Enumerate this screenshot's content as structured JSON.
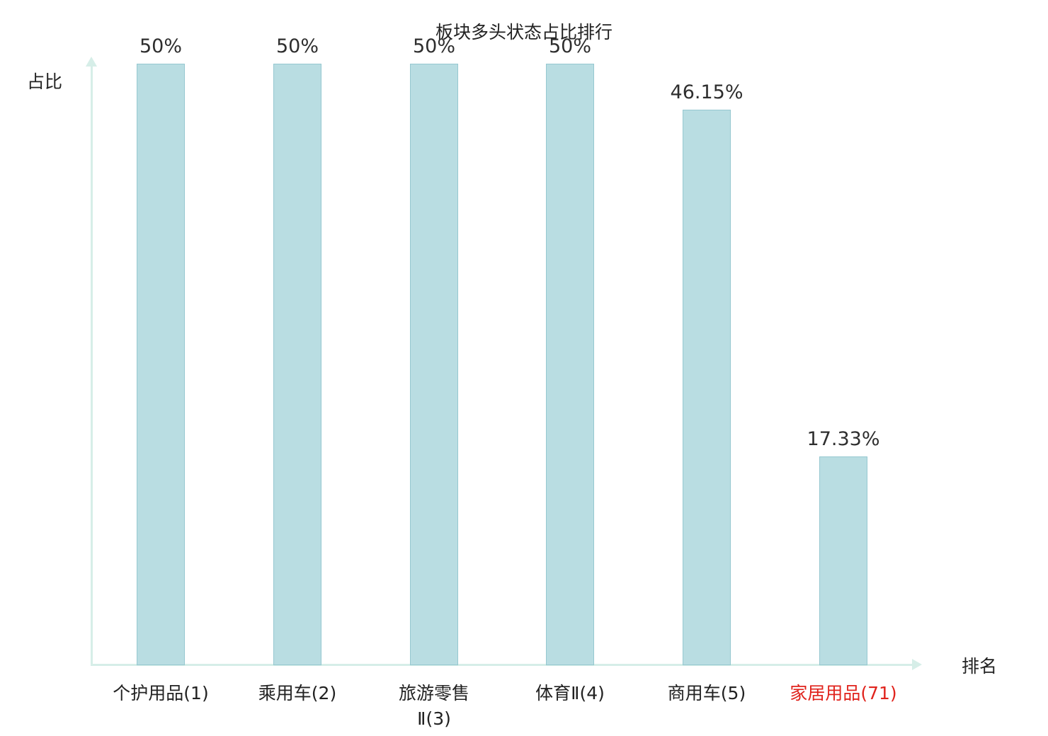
{
  "chart_data": {
    "type": "bar",
    "title": "板块多头状态占比排行",
    "xlabel": "排名",
    "ylabel": "占比",
    "categories": [
      "个护用品(1)",
      "乘用车(2)",
      "旅游零售\nⅡ(3)",
      "体育Ⅱ(4)",
      "商用车(5)",
      "家居用品(71)"
    ],
    "values": [
      50,
      50,
      50,
      50,
      46.15,
      17.33
    ],
    "value_labels": [
      "50%",
      "50%",
      "50%",
      "50%",
      "46.15%",
      "17.33%"
    ],
    "highlight_index": 5,
    "ylim": [
      0,
      50
    ],
    "grid": false,
    "legend": "none",
    "colors": {
      "bar_fill": "#b9dde2",
      "bar_border": "#96c8d0",
      "axis": "#d6eee8",
      "text": "#222222",
      "highlight_text": "#e0231c"
    }
  }
}
